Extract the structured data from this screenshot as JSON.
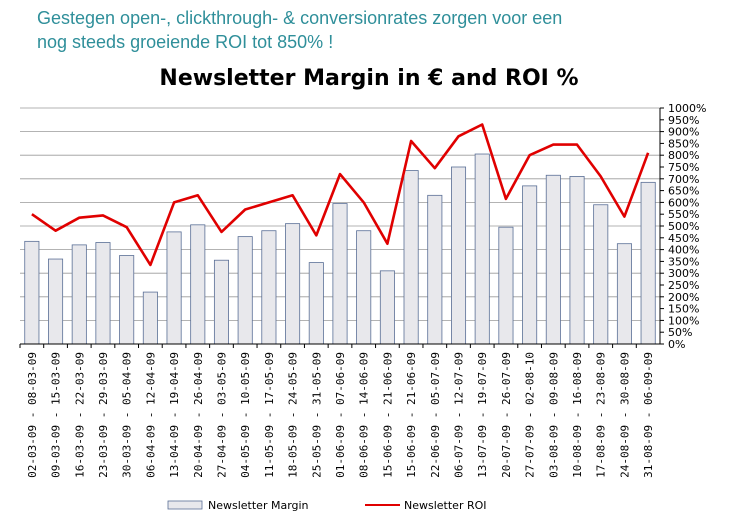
{
  "slide": {
    "headline_line1": "Gestegen open-, clickthrough- & conversionrates zorgen voor  een",
    "headline_line2": "nog steeds groeiende ROI tot 850% !"
  },
  "chart_data": {
    "type": "bar+line",
    "title": "Newsletter Margin in € and ROI %",
    "categories": [
      "02-03-09 - 08-03-09",
      "09-03-09 - 15-03-09",
      "16-03-09 - 22-03-09",
      "23-03-09 - 29-03-09",
      "30-03-09 - 05-04-09",
      "06-04-09 - 12-04-09",
      "13-04-09 - 19-04-09",
      "20-04-09 - 26-04-09",
      "27-04-09 - 03-05-09",
      "04-05-09 - 10-05-09",
      "11-05-09 - 17-05-09",
      "18-05-09 - 24-05-09",
      "25-05-09 - 31-05-09",
      "01-06-09 - 07-06-09",
      "08-06-09 - 14-06-09",
      "15-06-09 - 21-06-09",
      "15-06-09 - 21-06-09",
      "22-06-09 - 05-07-09",
      "06-07-09 - 12-07-09",
      "13-07-09 - 19-07-09",
      "20-07-09 - 26-07-09",
      "27-07-09 - 02-08-10",
      "03-08-09 - 09-08-09",
      "10-08-09 - 16-08-09",
      "17-08-09 - 23-08-09",
      "24-08-09 - 30-08-09",
      "31-08-09 - 06-09-09"
    ],
    "series": [
      {
        "name": "Newsletter Margin",
        "kind": "bar",
        "color": "#e8e8ec",
        "values": [
          435,
          360,
          420,
          430,
          375,
          220,
          475,
          505,
          355,
          455,
          480,
          510,
          345,
          595,
          480,
          310,
          735,
          630,
          750,
          805,
          495,
          670,
          715,
          710,
          590,
          425,
          685
        ]
      },
      {
        "name": "Newsletter ROI",
        "kind": "line",
        "color": "#e00000",
        "values": [
          550,
          480,
          535,
          545,
          495,
          335,
          600,
          630,
          475,
          570,
          600,
          630,
          460,
          720,
          600,
          425,
          860,
          745,
          880,
          930,
          615,
          800,
          845,
          845,
          710,
          540,
          810
        ]
      }
    ],
    "y_axis": {
      "ylim": [
        0,
        1000
      ],
      "ticks": [
        "0%",
        "50%",
        "100%",
        "150%",
        "200%",
        "250%",
        "300%",
        "350%",
        "400%",
        "450%",
        "500%",
        "550%",
        "600%",
        "650%",
        "700%",
        "750%",
        "800%",
        "850%",
        "900%",
        "950%",
        "1000%"
      ]
    },
    "grid": true,
    "legend_position": "bottom"
  }
}
